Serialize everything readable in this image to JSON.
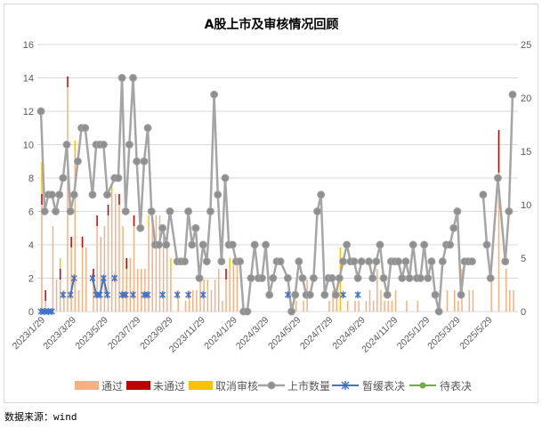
{
  "chart_data": {
    "type": "bar+line",
    "title": "A股上市及审核情况回顾",
    "source": "数据来源：wind",
    "left_axis": {
      "ylim": [
        0,
        16
      ],
      "ticks": [
        0,
        2,
        4,
        6,
        8,
        10,
        12,
        14,
        16
      ]
    },
    "right_axis": {
      "ylim": [
        0,
        25
      ],
      "ticks": [
        0,
        5,
        10,
        15,
        20,
        25
      ]
    },
    "grid": true,
    "legend_position": "bottom",
    "week_count": 129,
    "x_tick_labels": [
      {
        "week": 0,
        "label": "2023/1/29"
      },
      {
        "week": 8.4,
        "label": "2023/3/29"
      },
      {
        "week": 17.1,
        "label": "2023/5/29"
      },
      {
        "week": 25.9,
        "label": "2023/7/29"
      },
      {
        "week": 34.7,
        "label": "2023/9/29"
      },
      {
        "week": 43.4,
        "label": "2023/11/29"
      },
      {
        "week": 52.1,
        "label": "2024/1/29"
      },
      {
        "week": 60.7,
        "label": "2024/3/29"
      },
      {
        "week": 69.4,
        "label": "2024/5/29"
      },
      {
        "week": 78.1,
        "label": "2024/7/29"
      },
      {
        "week": 86.9,
        "label": "2024/9/29"
      },
      {
        "week": 95.7,
        "label": "2024/11/29"
      },
      {
        "week": 104.4,
        "label": "2025/1/29"
      },
      {
        "week": 112.7,
        "label": "2025/3/29"
      },
      {
        "week": 121.4,
        "label": "2025/5/29"
      }
    ],
    "series": [
      {
        "name": "通过",
        "kind": "stacked-bar",
        "axis": "right",
        "color": "#F4B183",
        "values": [
          10,
          1,
          0,
          8,
          3,
          3,
          2,
          21,
          6,
          15,
          2,
          6,
          6,
          0,
          3,
          8,
          7,
          8,
          9,
          11,
          11,
          10,
          8,
          4,
          5,
          8,
          4,
          4,
          4,
          8,
          9,
          9,
          9,
          7,
          7,
          4,
          0,
          2,
          0,
          1,
          2,
          2,
          2,
          3,
          3,
          2,
          2,
          3,
          4,
          1,
          3,
          4,
          5,
          5,
          0,
          0,
          0,
          0,
          0,
          0,
          0,
          0,
          0,
          0,
          0,
          0,
          0,
          0,
          0,
          1,
          0,
          1,
          3,
          0,
          0,
          0,
          0,
          0,
          1,
          2,
          2,
          0,
          0,
          1,
          0,
          1,
          1,
          0,
          1,
          2,
          1,
          4,
          2,
          1,
          1,
          1,
          2,
          0,
          0,
          1,
          0,
          0,
          1,
          0,
          0,
          0,
          0,
          0,
          2,
          0,
          2,
          0,
          2,
          1,
          4,
          0,
          2,
          2,
          0,
          0,
          0,
          0,
          3,
          0,
          13,
          0,
          4,
          2,
          2
        ]
      },
      {
        "name": "未通过",
        "kind": "stacked-bar",
        "axis": "right",
        "color": "#C00000",
        "by_week": {
          "0": 1,
          "1": 1,
          "5": 1,
          "7": 1,
          "8": 1,
          "11": 1,
          "14": 1,
          "15": 1,
          "18": 1,
          "21": 1,
          "23": 1,
          "25": 1,
          "50": 1,
          "124": 4
        }
      },
      {
        "name": "取消审核",
        "kind": "stacked-bar",
        "axis": "right",
        "color": "#FFC000",
        "by_week": {
          "0": 3,
          "5": 1,
          "9": 1,
          "19": 1,
          "29": 1,
          "35": 1,
          "45": 1,
          "51": 1,
          "81": 6
        }
      },
      {
        "name": "上市数量",
        "kind": "line",
        "axis": "left",
        "color": "#A5A5A5",
        "values": [
          12,
          6,
          7,
          7,
          6,
          7,
          8,
          10,
          6,
          7,
          9,
          11,
          11,
          null,
          7,
          10,
          10,
          10,
          7,
          null,
          8,
          8,
          14,
          6,
          10,
          14,
          9,
          5,
          9,
          11,
          6,
          4,
          4,
          5,
          4,
          6,
          null,
          3,
          3,
          3,
          6,
          4,
          5,
          2,
          4,
          3,
          6,
          13,
          7,
          3,
          8,
          4,
          4,
          3,
          3,
          0,
          0,
          2,
          4,
          2,
          2,
          4,
          1,
          2,
          3,
          3,
          null,
          2,
          0,
          1,
          3,
          2,
          1,
          1,
          2,
          6,
          7,
          1,
          2,
          2,
          1,
          2,
          3,
          4,
          3,
          3,
          2,
          3,
          null,
          3,
          2,
          3,
          4,
          2,
          1,
          3,
          3,
          3,
          2,
          3,
          2,
          4,
          2,
          2,
          4,
          2,
          3,
          1,
          0,
          3,
          4,
          4,
          5,
          6,
          1,
          3,
          3,
          3,
          null,
          null,
          7,
          4,
          2,
          null,
          8,
          null,
          3,
          6,
          13
        ]
      },
      {
        "name": "暂缓表决",
        "kind": "line",
        "axis": "left",
        "color": "#4472C4",
        "by_week": {
          "0": 0,
          "1": 0,
          "2": 0,
          "3": 0,
          "6": 1,
          "8": 1,
          "9": 2,
          "14": 2,
          "15": 1,
          "16": 1,
          "17": 2,
          "18": 1,
          "20": 2,
          "22": 1,
          "23": 1,
          "25": 1,
          "28": 1,
          "29": 1,
          "33": 1,
          "37": 1,
          "40": 1,
          "44": 1,
          "67": 1,
          "82": 1,
          "86": 1
        }
      },
      {
        "name": "待表决",
        "kind": "line",
        "axis": "left",
        "color": "#70AD47",
        "by_week": {}
      }
    ]
  }
}
